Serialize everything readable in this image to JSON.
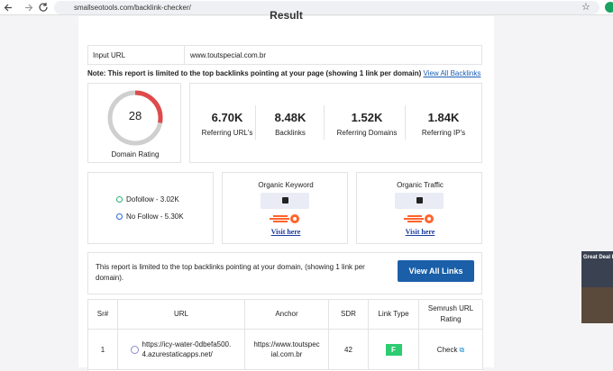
{
  "browser": {
    "url": "smallseotools.com/backlink-checker/"
  },
  "result_title": "Result",
  "input": {
    "label": "Input URL",
    "value": "www.toutspecial.com.br"
  },
  "note": {
    "text": "Note: This report is limited to the top backlinks pointing at your page (showing 1 link per domain)",
    "link": "View All Backlinks"
  },
  "domain_rating": {
    "value": 28,
    "label": "Domain Rating"
  },
  "stats": [
    {
      "value": "6.70K",
      "label": "Referring URL's"
    },
    {
      "value": "8.48K",
      "label": "Backlinks"
    },
    {
      "value": "1.52K",
      "label": "Referring Domains"
    },
    {
      "value": "1.84K",
      "label": "Referring IP's"
    }
  ],
  "follow": {
    "dofollow": "Dofollow - 3.02K",
    "nofollow": "No Follow - 5.30K"
  },
  "organic": [
    {
      "title": "Organic Keyword",
      "link": "Visit here"
    },
    {
      "title": "Organic Traffic",
      "link": "Visit here"
    }
  ],
  "banner": {
    "text": "This report is limited to the top backlinks pointing at your domain, (showing 1 link per domain).",
    "button": "View All Links"
  },
  "table": {
    "headers": [
      "Sr#",
      "URL",
      "Anchor",
      "SDR",
      "Link Type",
      "Semrush URL Rating"
    ],
    "rows": [
      [
        "1",
        "https://icy-water-0dbefa500.4.azurestaticapps.net/",
        "https://www.toutspecial.com.br",
        42,
        "F",
        "Check"
      ]
    ]
  },
  "ad": {
    "text": "Great Deal by agoda"
  }
}
